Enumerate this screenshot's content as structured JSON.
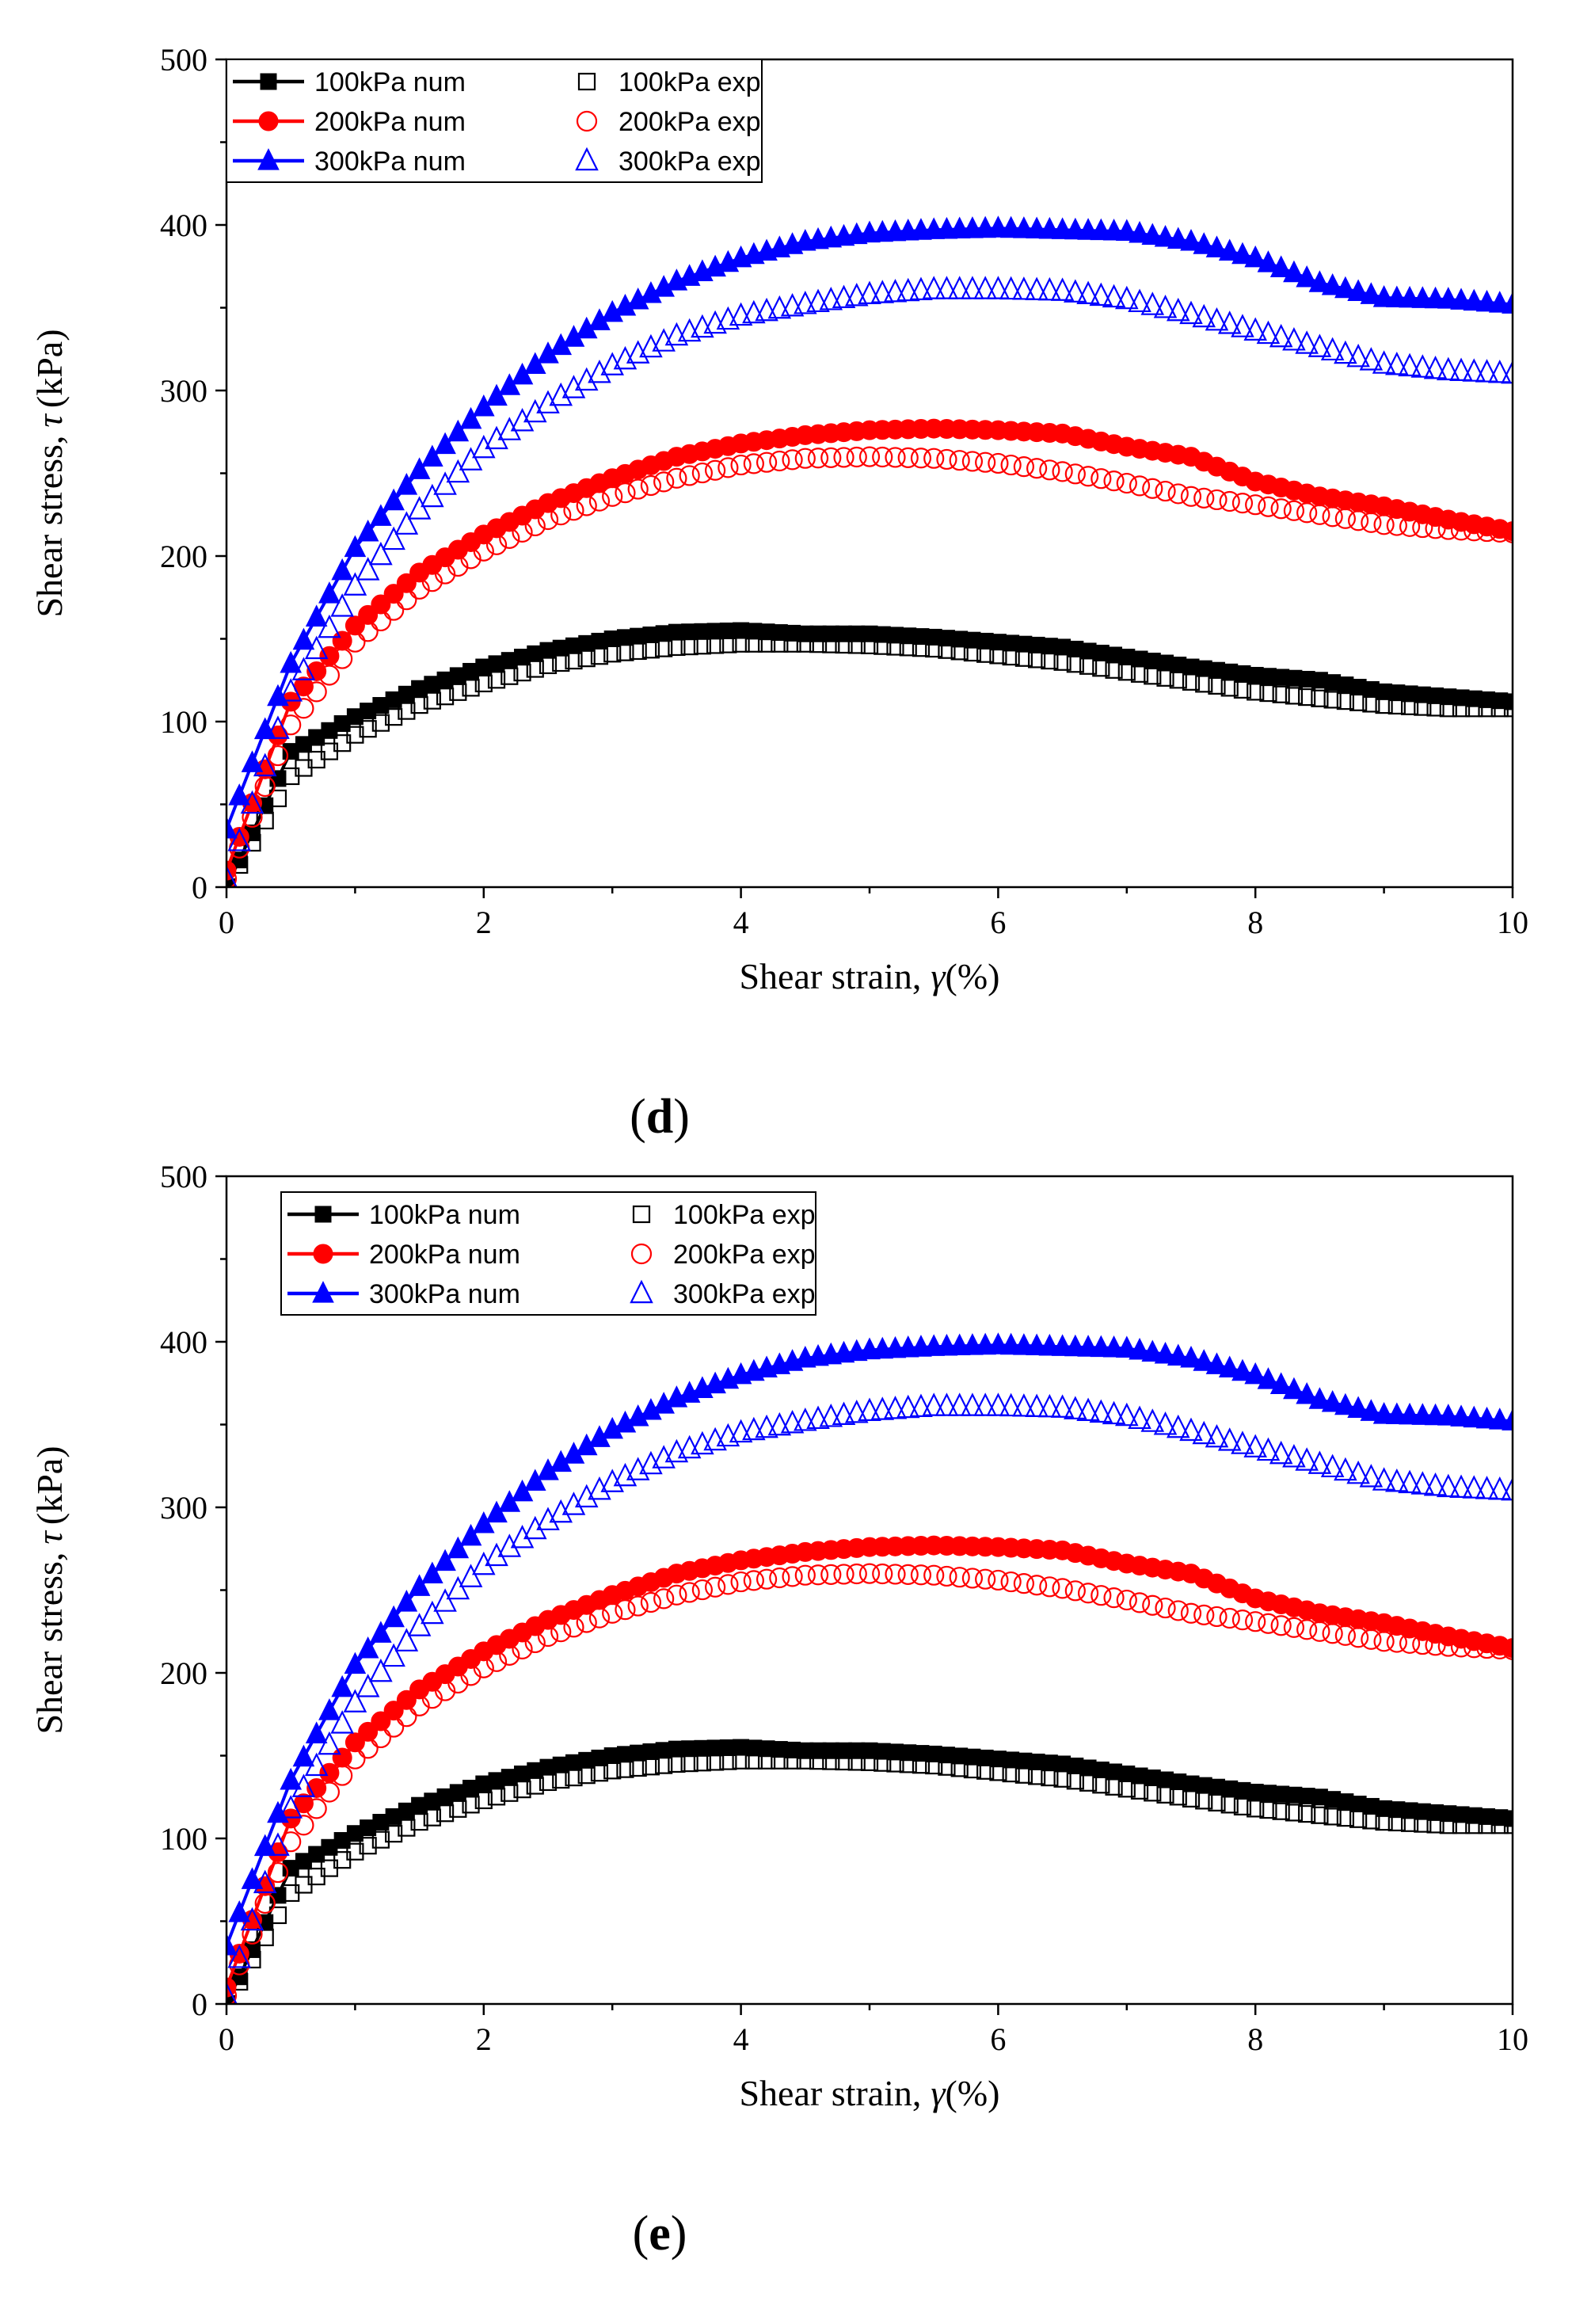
{
  "chart_data": [
    {
      "type": "scatter",
      "panel_label": "d",
      "caption_parts": [
        "(",
        "d",
        ")"
      ],
      "xlabel": "Shear strain,",
      "xlabel_symbol": "γ",
      "xlabel_unit": "(%)",
      "ylabel": "Shear stress,",
      "ylabel_symbol": "τ",
      "ylabel_unit": "(kPa)",
      "xlim": [
        0,
        10
      ],
      "ylim": [
        0,
        500
      ],
      "x_ticks": [
        0,
        2,
        4,
        6,
        8,
        10
      ],
      "x_tick_labels": [
        "0",
        "2",
        "4",
        "6",
        "8",
        "10"
      ],
      "y_ticks": [
        0,
        100,
        200,
        300,
        400,
        500
      ],
      "y_tick_labels": [
        "0",
        "100",
        "200",
        "300",
        "400",
        "500"
      ],
      "legend": {
        "placement": "top-left",
        "entries": [
          "100kPa num",
          "100kPa exp",
          "200kPa num",
          "200kPa exp",
          "300kPa num",
          "300kPa exp"
        ]
      },
      "series": [
        {
          "name": "100kPa num",
          "color": "#000000",
          "marker": "square",
          "filled": true,
          "line": true,
          "x": [
            0,
            0.5,
            1,
            1.5,
            2,
            2.5,
            3,
            3.5,
            4,
            4.5,
            5,
            5.5,
            6,
            6.5,
            7,
            7.5,
            8,
            8.5,
            9,
            9.5,
            10
          ],
          "y": [
            0,
            82,
            103,
            120,
            133,
            143,
            150,
            154,
            155,
            153,
            153,
            151,
            148,
            145,
            139,
            133,
            128,
            125,
            118,
            115,
            112
          ]
        },
        {
          "name": "100kPa exp",
          "color": "#000000",
          "marker": "square",
          "filled": false,
          "line": false,
          "x": [
            0,
            0.5,
            1,
            1.5,
            2,
            2.5,
            3,
            3.5,
            4,
            4.5,
            5,
            5.5,
            6,
            6.5,
            7,
            7.5,
            8,
            8.5,
            9,
            9.5,
            10
          ],
          "y": [
            0,
            67,
            92,
            110,
            123,
            134,
            141,
            145,
            147,
            147,
            146,
            144,
            140,
            136,
            130,
            124,
            118,
            114,
            110,
            108,
            108
          ]
        },
        {
          "name": "200kPa num",
          "color": "#ff0000",
          "marker": "circle",
          "filled": true,
          "line": true,
          "x": [
            0,
            0.5,
            1,
            1.5,
            2,
            2.5,
            3,
            3.5,
            4,
            4.5,
            5,
            5.5,
            6,
            6.5,
            7,
            7.5,
            8,
            8.5,
            9,
            9.5,
            10
          ],
          "y": [
            10,
            112,
            158,
            190,
            213,
            232,
            247,
            260,
            268,
            273,
            276,
            277,
            276,
            274,
            266,
            260,
            245,
            236,
            230,
            222,
            215
          ]
        },
        {
          "name": "200kPa exp",
          "color": "#ff0000",
          "marker": "circle",
          "filled": false,
          "line": false,
          "x": [
            0,
            0.5,
            1,
            1.5,
            2,
            2.5,
            3,
            3.5,
            4,
            4.5,
            5,
            5.5,
            6,
            6.5,
            7,
            7.5,
            8,
            8.5,
            9,
            9.5,
            10
          ],
          "y": [
            5,
            98,
            148,
            180,
            203,
            222,
            236,
            247,
            255,
            259,
            260,
            259,
            256,
            251,
            244,
            236,
            231,
            225,
            219,
            216,
            214
          ]
        },
        {
          "name": "300kPa num",
          "color": "#0000ff",
          "marker": "triangle",
          "filled": true,
          "line": true,
          "x": [
            0,
            0.5,
            1,
            1.5,
            2,
            2.5,
            3,
            3.5,
            4,
            4.5,
            5,
            5.5,
            6,
            6.5,
            7,
            7.5,
            8,
            8.5,
            9,
            9.5,
            10
          ],
          "y": [
            35,
            135,
            205,
            252,
            290,
            322,
            347,
            366,
            380,
            390,
            395,
            397,
            398,
            397,
            396,
            390,
            380,
            365,
            356,
            355,
            352
          ]
        },
        {
          "name": "300kPa exp",
          "color": "#0000ff",
          "marker": "triangle",
          "filled": false,
          "line": false,
          "x": [
            0,
            0.5,
            1,
            1.5,
            2,
            2.5,
            3,
            3.5,
            4,
            4.5,
            5,
            5.5,
            6,
            6.5,
            7,
            7.5,
            8,
            8.5,
            9,
            9.5,
            10
          ],
          "y": [
            5,
            118,
            182,
            228,
            265,
            292,
            315,
            333,
            345,
            352,
            358,
            361,
            361,
            360,
            355,
            346,
            336,
            326,
            316,
            312,
            310
          ]
        }
      ]
    },
    {
      "type": "scatter",
      "panel_label": "e",
      "caption_parts": [
        "(",
        "e",
        ")"
      ],
      "xlabel": "Shear strain,",
      "xlabel_symbol": "γ",
      "xlabel_unit": "(%)",
      "ylabel": "Shear stress,",
      "ylabel_symbol": "τ",
      "ylabel_unit": "(kPa)",
      "xlim": [
        0,
        10
      ],
      "ylim": [
        0,
        500
      ],
      "x_ticks": [
        0,
        2,
        4,
        6,
        8,
        10
      ],
      "x_tick_labels": [
        "0",
        "2",
        "4",
        "6",
        "8",
        "10"
      ],
      "y_ticks": [
        0,
        100,
        200,
        300,
        400,
        500
      ],
      "y_tick_labels": [
        "0",
        "100",
        "200",
        "300",
        "400",
        "500"
      ],
      "legend": {
        "placement": "top-left",
        "entries": [
          "100kPa num",
          "100kPa exp",
          "200kPa num",
          "200kPa exp",
          "300kPa num",
          "300kPa exp"
        ]
      },
      "series": [
        {
          "name": "100kPa num",
          "color": "#000000",
          "marker": "square",
          "filled": true,
          "line": true,
          "x": [
            0,
            0.5,
            1,
            1.5,
            2,
            2.5,
            3,
            3.5,
            4,
            4.5,
            5,
            5.5,
            6,
            6.5,
            7,
            7.5,
            8,
            8.5,
            9,
            9.5,
            10
          ],
          "y": [
            0,
            82,
            103,
            120,
            133,
            143,
            150,
            154,
            155,
            153,
            153,
            151,
            148,
            145,
            139,
            133,
            128,
            125,
            118,
            115,
            112
          ]
        },
        {
          "name": "100kPa exp",
          "color": "#000000",
          "marker": "square",
          "filled": false,
          "line": false,
          "x": [
            0,
            0.5,
            1,
            1.5,
            2,
            2.5,
            3,
            3.5,
            4,
            4.5,
            5,
            5.5,
            6,
            6.5,
            7,
            7.5,
            8,
            8.5,
            9,
            9.5,
            10
          ],
          "y": [
            0,
            67,
            92,
            110,
            123,
            134,
            141,
            145,
            147,
            147,
            146,
            144,
            140,
            136,
            130,
            124,
            118,
            114,
            110,
            108,
            108
          ]
        },
        {
          "name": "200kPa num",
          "color": "#ff0000",
          "marker": "circle",
          "filled": true,
          "line": true,
          "x": [
            0,
            0.5,
            1,
            1.5,
            2,
            2.5,
            3,
            3.5,
            4,
            4.5,
            5,
            5.5,
            6,
            6.5,
            7,
            7.5,
            8,
            8.5,
            9,
            9.5,
            10
          ],
          "y": [
            10,
            112,
            158,
            190,
            213,
            232,
            247,
            260,
            268,
            273,
            276,
            277,
            276,
            274,
            266,
            260,
            245,
            236,
            230,
            222,
            215
          ]
        },
        {
          "name": "200kPa exp",
          "color": "#ff0000",
          "marker": "circle",
          "filled": false,
          "line": false,
          "x": [
            0,
            0.5,
            1,
            1.5,
            2,
            2.5,
            3,
            3.5,
            4,
            4.5,
            5,
            5.5,
            6,
            6.5,
            7,
            7.5,
            8,
            8.5,
            9,
            9.5,
            10
          ],
          "y": [
            5,
            98,
            148,
            180,
            203,
            222,
            236,
            247,
            255,
            259,
            260,
            259,
            256,
            251,
            244,
            236,
            231,
            225,
            219,
            216,
            214
          ]
        },
        {
          "name": "300kPa num",
          "color": "#0000ff",
          "marker": "triangle",
          "filled": true,
          "line": true,
          "x": [
            0,
            0.5,
            1,
            1.5,
            2,
            2.5,
            3,
            3.5,
            4,
            4.5,
            5,
            5.5,
            6,
            6.5,
            7,
            7.5,
            8,
            8.5,
            9,
            9.5,
            10
          ],
          "y": [
            35,
            135,
            205,
            252,
            290,
            322,
            347,
            366,
            380,
            390,
            395,
            397,
            398,
            397,
            396,
            390,
            380,
            365,
            356,
            355,
            352
          ]
        },
        {
          "name": "300kPa exp",
          "color": "#0000ff",
          "marker": "triangle",
          "filled": false,
          "line": false,
          "x": [
            0,
            0.5,
            1,
            1.5,
            2,
            2.5,
            3,
            3.5,
            4,
            4.5,
            5,
            5.5,
            6,
            6.5,
            7,
            7.5,
            8,
            8.5,
            9,
            9.5,
            10
          ],
          "y": [
            5,
            118,
            182,
            228,
            265,
            292,
            315,
            333,
            345,
            352,
            358,
            361,
            361,
            360,
            355,
            346,
            336,
            326,
            316,
            312,
            310
          ]
        }
      ]
    }
  ]
}
